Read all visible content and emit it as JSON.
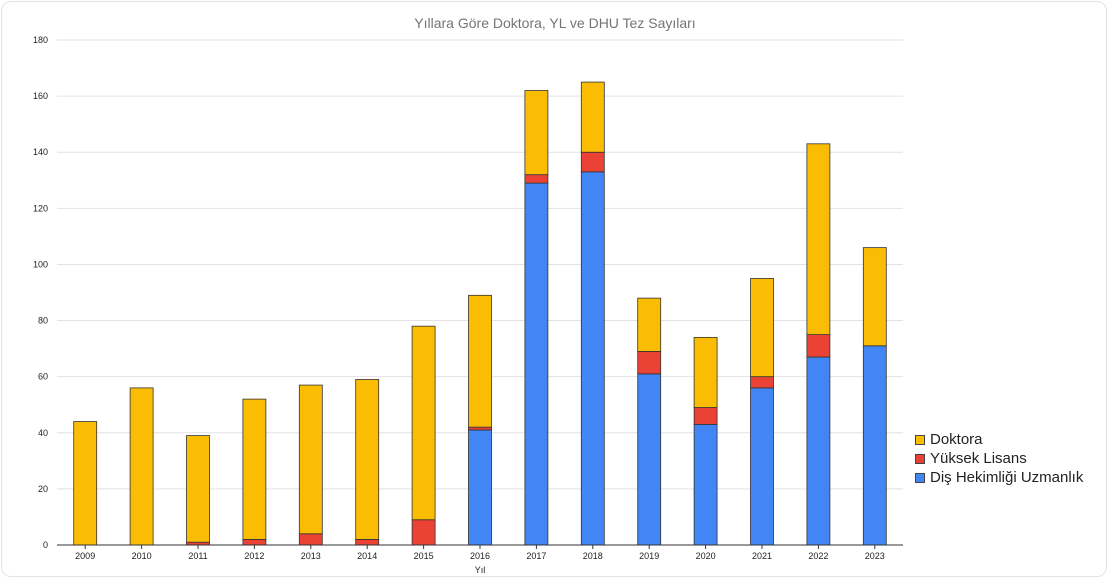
{
  "chart_data": {
    "type": "bar",
    "stacked": true,
    "title": "Yıllara Göre Doktora, YL ve DHU Tez Sayıları",
    "xlabel": "Yıl",
    "ylabel": "",
    "ylim": [
      0,
      180
    ],
    "yticks": [
      0,
      20,
      40,
      60,
      80,
      100,
      120,
      140,
      160,
      180
    ],
    "grid": true,
    "legend_position": "right",
    "categories": [
      "2009",
      "2010",
      "2011",
      "2012",
      "2013",
      "2014",
      "2015",
      "2016",
      "2017",
      "2018",
      "2019",
      "2020",
      "2021",
      "2022",
      "2023"
    ],
    "series": [
      {
        "name": "Diş Hekimliği Uzmanlık",
        "color": "#4285f4",
        "values": [
          0,
          0,
          0,
          0,
          0,
          0,
          0,
          41,
          129,
          133,
          61,
          43,
          56,
          67,
          71
        ]
      },
      {
        "name": "Yüksek Lisans",
        "color": "#ea4335",
        "values": [
          0,
          0,
          1,
          2,
          4,
          2,
          9,
          1,
          3,
          7,
          8,
          6,
          4,
          8,
          0
        ]
      },
      {
        "name": "Doktora",
        "color": "#fbbc04",
        "values": [
          44,
          56,
          38,
          50,
          53,
          57,
          69,
          47,
          30,
          25,
          19,
          25,
          35,
          68,
          35
        ]
      }
    ],
    "legend": [
      "Doktora",
      "Yüksek Lisans",
      "Diş Hekimliği Uzmanlık"
    ]
  }
}
